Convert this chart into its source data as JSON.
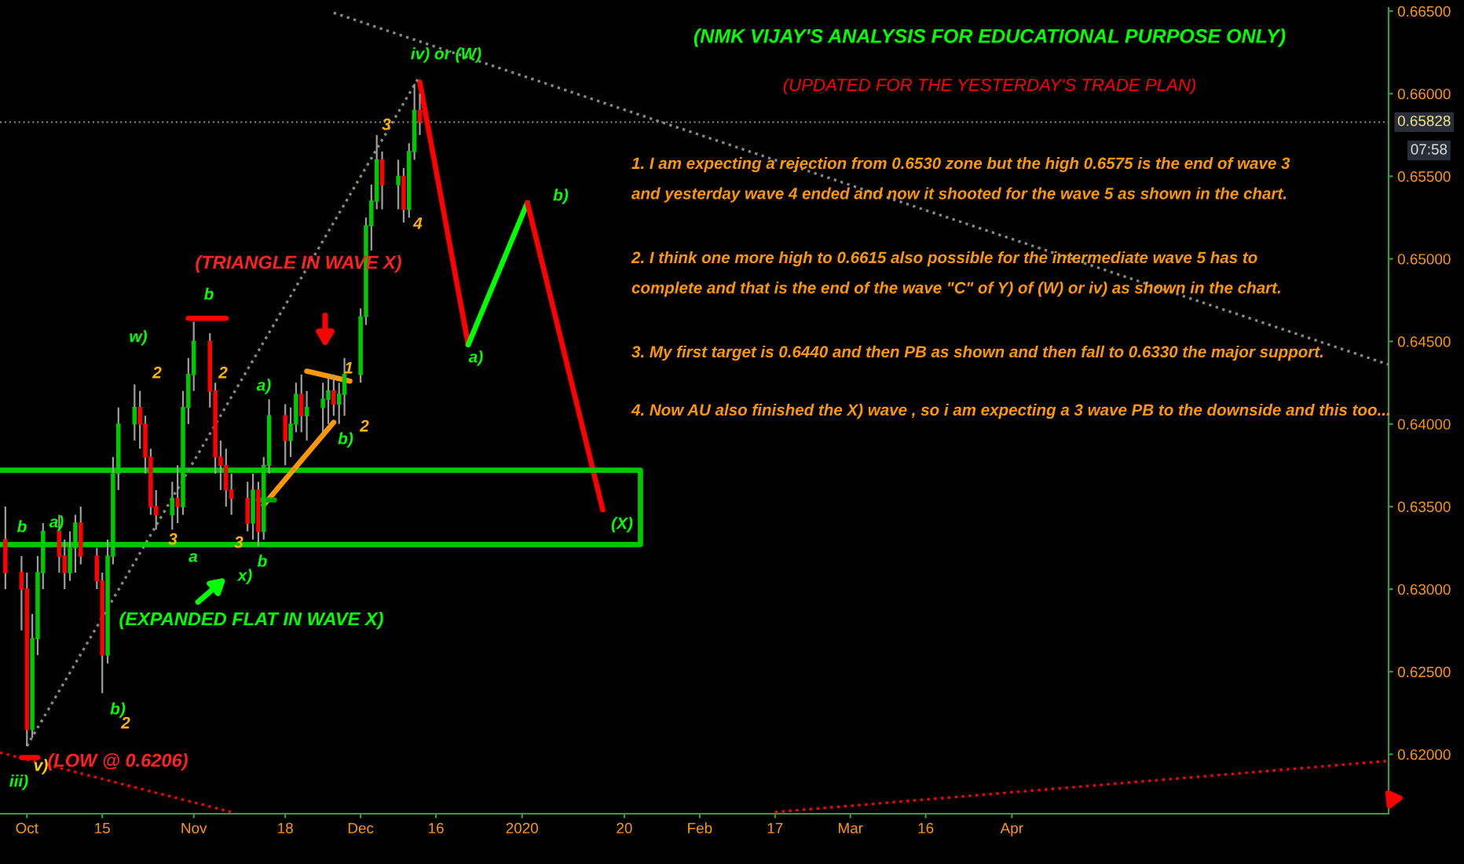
{
  "chart_data": {
    "type": "candlestick",
    "title": "(NMK VIJAY'S ANALYSIS FOR EDUCATIONAL PURPOSE ONLY)",
    "subtitle": "(UPDATED FOR THE YESTERDAY'S TRADE PLAN)",
    "x": [
      "2019-09-27",
      "2019-09-30",
      "2019-10-01",
      "2019-10-02",
      "2019-10-03",
      "2019-10-04",
      "2019-10-07",
      "2019-10-08",
      "2019-10-09",
      "2019-10-10",
      "2019-10-11",
      "2019-10-14",
      "2019-10-15",
      "2019-10-16",
      "2019-10-17",
      "2019-10-18",
      "2019-10-21",
      "2019-10-22",
      "2019-10-23",
      "2019-10-24",
      "2019-10-25",
      "2019-10-28",
      "2019-10-29",
      "2019-10-30",
      "2019-10-31",
      "2019-11-01",
      "2019-11-04",
      "2019-11-05",
      "2019-11-06",
      "2019-11-07",
      "2019-11-08",
      "2019-11-11",
      "2019-11-12",
      "2019-11-13",
      "2019-11-14",
      "2019-11-15",
      "2019-11-18",
      "2019-11-19",
      "2019-11-20",
      "2019-11-21",
      "2019-11-22",
      "2019-11-25",
      "2019-11-26",
      "2019-11-27",
      "2019-11-28",
      "2019-11-29",
      "2019-12-02",
      "2019-12-03",
      "2019-12-04",
      "2019-12-05",
      "2019-12-06",
      "2019-12-09",
      "2019-12-10",
      "2019-12-11",
      "2019-12-12",
      "2019-12-13"
    ],
    "ohlc": [
      [
        0.633,
        0.635,
        0.63,
        0.631
      ],
      [
        0.631,
        0.632,
        0.6275,
        0.63
      ],
      [
        0.63,
        0.631,
        0.6205,
        0.6215
      ],
      [
        0.6215,
        0.6285,
        0.621,
        0.627
      ],
      [
        0.627,
        0.632,
        0.626,
        0.631
      ],
      [
        0.631,
        0.634,
        0.63,
        0.6335
      ],
      [
        0.6335,
        0.6345,
        0.631,
        0.632
      ],
      [
        0.632,
        0.633,
        0.63,
        0.631
      ],
      [
        0.631,
        0.6335,
        0.6305,
        0.6325
      ],
      [
        0.6325,
        0.6345,
        0.631,
        0.634
      ],
      [
        0.634,
        0.635,
        0.6315,
        0.632
      ],
      [
        0.632,
        0.6325,
        0.63,
        0.6305
      ],
      [
        0.6305,
        0.631,
        0.6237,
        0.626
      ],
      [
        0.626,
        0.633,
        0.6255,
        0.632
      ],
      [
        0.632,
        0.638,
        0.6315,
        0.637
      ],
      [
        0.637,
        0.641,
        0.636,
        0.64
      ],
      [
        0.64,
        0.6424,
        0.639,
        0.641
      ],
      [
        0.641,
        0.642,
        0.6385,
        0.64
      ],
      [
        0.64,
        0.6405,
        0.637,
        0.638
      ],
      [
        0.638,
        0.6385,
        0.6345,
        0.635
      ],
      [
        0.635,
        0.636,
        0.6336,
        0.6345
      ],
      [
        0.6345,
        0.6365,
        0.6336,
        0.6355
      ],
      [
        0.6355,
        0.6375,
        0.634,
        0.635
      ],
      [
        0.635,
        0.642,
        0.6345,
        0.641
      ],
      [
        0.641,
        0.644,
        0.64,
        0.643
      ],
      [
        0.643,
        0.6462,
        0.642,
        0.645
      ],
      [
        0.645,
        0.6455,
        0.641,
        0.642
      ],
      [
        0.642,
        0.6425,
        0.637,
        0.638
      ],
      [
        0.638,
        0.639,
        0.636,
        0.6375
      ],
      [
        0.6375,
        0.6385,
        0.635,
        0.636
      ],
      [
        0.636,
        0.637,
        0.6345,
        0.6355
      ],
      [
        0.6355,
        0.6365,
        0.6335,
        0.634
      ],
      [
        0.634,
        0.637,
        0.633,
        0.636
      ],
      [
        0.636,
        0.6365,
        0.6326,
        0.6335
      ],
      [
        0.6335,
        0.638,
        0.633,
        0.6375
      ],
      [
        0.6375,
        0.6415,
        0.637,
        0.6405
      ],
      [
        0.6405,
        0.6412,
        0.6375,
        0.639
      ],
      [
        0.639,
        0.641,
        0.638,
        0.64
      ],
      [
        0.64,
        0.6425,
        0.6395,
        0.6418
      ],
      [
        0.6418,
        0.643,
        0.6395,
        0.6405
      ],
      [
        0.6405,
        0.642,
        0.639,
        0.641
      ],
      [
        0.641,
        0.6425,
        0.6395,
        0.6415
      ],
      [
        0.6415,
        0.6428,
        0.64,
        0.642
      ],
      [
        0.642,
        0.643,
        0.6405,
        0.6412
      ],
      [
        0.6412,
        0.6425,
        0.64,
        0.6418
      ],
      [
        0.6418,
        0.644,
        0.6405,
        0.643
      ],
      [
        0.643,
        0.647,
        0.6425,
        0.6465
      ],
      [
        0.6465,
        0.6525,
        0.646,
        0.652
      ],
      [
        0.652,
        0.6545,
        0.6505,
        0.6535
      ],
      [
        0.6535,
        0.6575,
        0.653,
        0.656
      ],
      [
        0.656,
        0.6565,
        0.653,
        0.6545
      ],
      [
        0.6545,
        0.656,
        0.653,
        0.655
      ],
      [
        0.655,
        0.6555,
        0.6522,
        0.653
      ],
      [
        0.653,
        0.657,
        0.6525,
        0.6565
      ],
      [
        0.6565,
        0.6606,
        0.656,
        0.659
      ],
      [
        0.659,
        0.66,
        0.6575,
        0.6583
      ]
    ],
    "colors": [
      "#ff0000",
      "#ff0000",
      "#ff0000",
      "#00c800",
      "#00c800",
      "#00c800",
      "#ff0000",
      "#ff0000",
      "#00c800",
      "#00c800",
      "#ff0000",
      "#ff0000",
      "#ff0000",
      "#00c800",
      "#00c800",
      "#00c800",
      "#00c800",
      "#ff0000",
      "#ff0000",
      "#ff0000",
      "#ff0000",
      "#00c800",
      "#ff0000",
      "#00c800",
      "#00c800",
      "#00c800",
      "#ff0000",
      "#ff0000",
      "#ff0000",
      "#ff0000",
      "#ff0000",
      "#ff0000",
      "#00c800",
      "#ff0000",
      "#00c800",
      "#00c800",
      "#ff0000",
      "#00c800",
      "#00c800",
      "#ff0000",
      "#00c800",
      "#00c800",
      "#00c800",
      "#ff0000",
      "#00c800",
      "#00c800",
      "#00c800",
      "#00c800",
      "#00c800",
      "#00c800",
      "#ff0000",
      "#00c800",
      "#ff0000",
      "#00c800",
      "#00c800",
      "#ff0000"
    ],
    "xlim": [
      "2019-09-26",
      "2020-06-10"
    ],
    "xticks": [
      {
        "value": "2019-10-01",
        "label": "Oct"
      },
      {
        "value": "2019-10-15",
        "label": "15"
      },
      {
        "value": "2019-11-01",
        "label": "Nov"
      },
      {
        "value": "2019-11-18",
        "label": "18"
      },
      {
        "value": "2019-12-02",
        "label": "Dec"
      },
      {
        "value": "2019-12-16",
        "label": "16"
      },
      {
        "value": "2020-01-01",
        "label": "2020"
      },
      {
        "value": "2020-01-20",
        "label": "20"
      },
      {
        "value": "2020-02-03",
        "label": "Feb"
      },
      {
        "value": "2020-02-17",
        "label": "17"
      },
      {
        "value": "2020-03-02",
        "label": "Mar"
      },
      {
        "value": "2020-03-16",
        "label": "16"
      },
      {
        "value": "2020-04-01",
        "label": "Apr"
      }
    ],
    "ylim": [
      0.6164,
      0.6652
    ],
    "yticks": [
      {
        "value": 0.62,
        "label": "0.62000"
      },
      {
        "value": 0.625,
        "label": "0.62500"
      },
      {
        "value": 0.63,
        "label": "0.63000"
      },
      {
        "value": 0.635,
        "label": "0.63500"
      },
      {
        "value": 0.64,
        "label": "0.64000"
      },
      {
        "value": 0.645,
        "label": "0.64500"
      },
      {
        "value": 0.65,
        "label": "0.65000"
      },
      {
        "value": 0.655,
        "label": "0.65500"
      },
      {
        "value": 0.66,
        "label": "0.66000"
      },
      {
        "value": 0.665,
        "label": "0.66500"
      }
    ],
    "ref_lines": [
      {
        "axis": "y",
        "value": 0.65828,
        "label": "0.65828",
        "color": "#888888",
        "line_style": "dotted"
      }
    ],
    "grid": false,
    "series": [
      {
        "type": "line",
        "color": "#ff0000",
        "x": [
          "2019-12-13",
          "2019-12-22"
        ],
        "values": [
          0.6607,
          0.6448
        ]
      },
      {
        "type": "line",
        "color": "#00ff00",
        "x": [
          "2019-12-22",
          "2020-01-02"
        ],
        "values": [
          0.6448,
          0.6534
        ]
      },
      {
        "type": "line",
        "color": "#ff0000",
        "x": [
          "2020-01-02",
          "2020-01-16"
        ],
        "values": [
          0.6534,
          0.6348
        ]
      },
      {
        "type": "line",
        "color": "#00c800",
        "x": [
          "2019-09-26",
          "2020-01-23",
          "2020-01-23",
          "2019-09-26"
        ],
        "values": [
          0.6372,
          0.6372,
          0.6327,
          0.6327
        ]
      },
      {
        "type": "line",
        "color": "#ff9800",
        "x": [
          "2019-11-22",
          "2019-11-30"
        ],
        "values": [
          0.6432,
          0.6426
        ]
      },
      {
        "type": "line",
        "color": "#ff9800",
        "x": [
          "2019-11-14",
          "2019-11-27"
        ],
        "values": [
          0.6351,
          0.6401
        ]
      },
      {
        "type": "line",
        "color": "#ff0000",
        "x": [
          "2019-10-31",
          "2019-11-07"
        ],
        "values": [
          0.6464,
          0.6464
        ]
      },
      {
        "type": "line",
        "color": "#ff0000",
        "x": [
          "2019-09-30",
          "2019-10-03"
        ],
        "values": [
          0.6198,
          0.6198
        ]
      },
      {
        "type": "line",
        "color": "#00a000",
        "x": [
          "2019-11-13",
          "2019-11-16"
        ],
        "values": [
          0.6354,
          0.6354
        ]
      },
      {
        "type": "line",
        "color": "#ff0000",
        "line_style": "dotted",
        "x": [
          "2019-09-26",
          "2019-11-08"
        ],
        "values": [
          0.6201,
          0.6165
        ]
      },
      {
        "type": "line",
        "color": "#ff0000",
        "line_style": "dotted",
        "x": [
          "2020-02-17",
          "2020-06-10"
        ],
        "values": [
          0.6165,
          0.6196
        ]
      },
      {
        "type": "line",
        "color": "#888888",
        "line_style": "dotted",
        "x": [
          "2019-11-27",
          "2020-06-10"
        ],
        "values": [
          0.6649,
          0.6436
        ]
      },
      {
        "type": "line",
        "color": "#888888",
        "line_style": "dotted",
        "x": [
          "2019-10-01",
          "2019-12-13"
        ],
        "values": [
          0.6205,
          0.6611
        ]
      }
    ],
    "annotations": [
      "1. I am expecting a rejection from 0.6530 zone but the high 0.6575 is the end of wave 3\nand yesterday wave 4 ended and now it shooted for the wave 5 as shown in the chart.",
      "2. I think one more high to 0.6615 also possible for the intermediate wave 5 has to\ncomplete and that is the end of the wave \"C\" of Y) of (W) or iv) as shown in the chart.",
      "3. My first target is 0.6440 and then PB as shown and then fall to 0.6330 the major support.",
      "4. Now AU also finished the X) wave , so i am expecting a 3 wave PB to the downside and this too...",
      "07:58",
      "iv) or (W)",
      "(TRIANGLE IN WAVE X)",
      "(EXPANDED FLAT IN WAVE X)",
      "(LOW @ 0.6206)",
      "a)",
      "b)",
      "(X)",
      "w)",
      "b",
      "a",
      "b",
      "x)",
      "a)",
      "b)",
      "b)",
      "iii)",
      "v)",
      "a)",
      "b",
      "3",
      "4",
      "2",
      "2",
      "3",
      "3",
      "1",
      "2",
      "2"
    ]
  }
}
